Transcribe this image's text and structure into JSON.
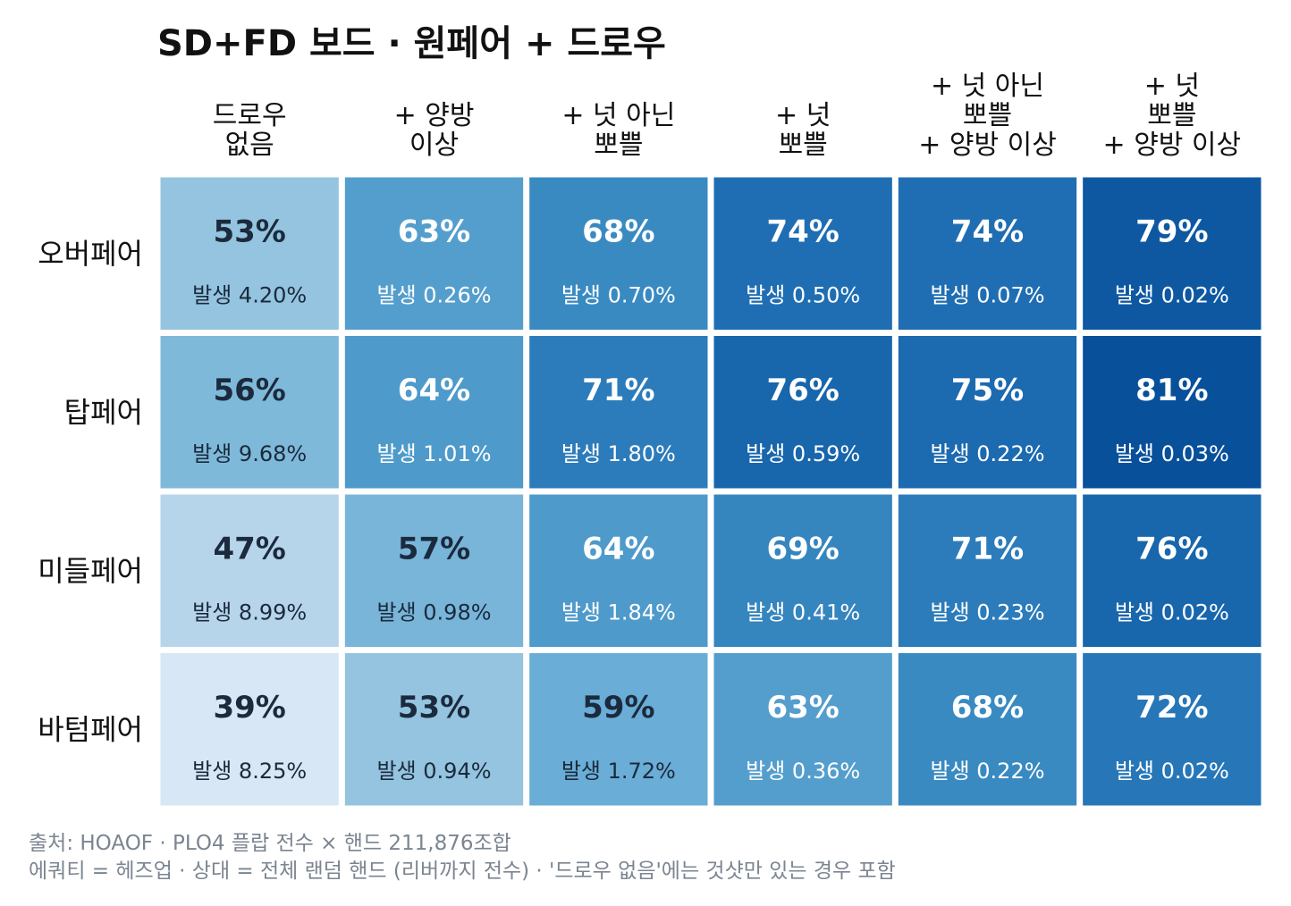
{
  "chart_data": {
    "type": "heatmap",
    "title": "SD+FD 보드 · 원페어 + 드로우",
    "columns": [
      [
        "드로우",
        "없음"
      ],
      [
        "+ 양방",
        "이상"
      ],
      [
        "+ 넛 아닌",
        "뽀쁠"
      ],
      [
        "+ 넛",
        "뽀쁠"
      ],
      [
        "+ 넛 아닌",
        "뽀쁠",
        "+ 양방 이상"
      ],
      [
        "+ 넛",
        "뽀쁠",
        "+ 양방 이상"
      ]
    ],
    "rows": [
      "오버페어",
      "탑페어",
      "미들페어",
      "바텀페어"
    ],
    "equity_pct": [
      [
        53,
        63,
        68,
        74,
        74,
        79
      ],
      [
        56,
        64,
        71,
        76,
        75,
        81
      ],
      [
        47,
        57,
        64,
        69,
        71,
        76
      ],
      [
        39,
        53,
        59,
        63,
        68,
        72
      ]
    ],
    "occurrence": [
      [
        "발생 4.20%",
        "발생 0.26%",
        "발생 0.70%",
        "발생 0.50%",
        "발생 0.07%",
        "발생 0.02%"
      ],
      [
        "발생 9.68%",
        "발생 1.01%",
        "발생 1.80%",
        "발생 0.59%",
        "발생 0.22%",
        "발생 0.03%"
      ],
      [
        "발생 8.99%",
        "발생 0.98%",
        "발생 1.84%",
        "발생 0.41%",
        "발생 0.23%",
        "발생 0.02%"
      ],
      [
        "발생 8.25%",
        "발생 0.94%",
        "발생 1.72%",
        "발생 0.36%",
        "발생 0.22%",
        "발생 0.02%"
      ]
    ],
    "color_range": [
      39,
      81
    ],
    "colormap": "Blues",
    "dark_text_color": "#1b2a3d",
    "light_text_color": "#ffffff"
  },
  "footnotes": {
    "source": "출처: HOAOF · PLO4 플랍 전수 × 핸드 211,876조합",
    "note": "에쿼티 = 헤즈업 · 상대 = 전체 랜덤 핸드 (리버까지 전수) · '드로우 없음'에는 것샷만 있는 경우 포함"
  }
}
